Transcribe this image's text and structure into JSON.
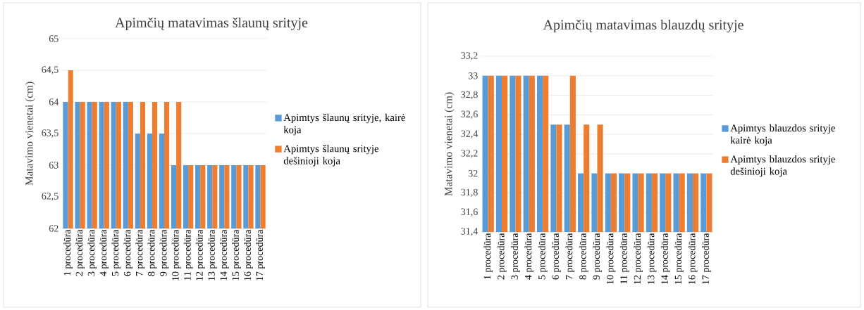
{
  "chart_data": [
    {
      "type": "bar",
      "title": "Apimčių matavimas šlaunų srityje",
      "ylabel": "Matavimo vienetai (cm)",
      "categories": [
        "1 procedūra",
        "2 procedūra",
        "3 procedūra",
        "4 procedūra",
        "5 procedūra",
        "6 procedūra",
        "7 procedūra",
        "8 procedūra",
        "9 procedūra",
        "10 procedūra",
        "11 procedūra",
        "12 procedūra",
        "13 procedūra",
        "14 procedūra",
        "15 procedūra",
        "16 procedūra",
        "17 procedūra"
      ],
      "series": [
        {
          "name": "Apimtys šlaunų srityje, kairė koja",
          "color": "#5b9bd5",
          "values": [
            64,
            64,
            64,
            64,
            64,
            64,
            63.5,
            63.5,
            63.5,
            63,
            63,
            63,
            63,
            63,
            63,
            63,
            63
          ]
        },
        {
          "name": "Apimtys šlaunų srityje dešinioji koja",
          "color": "#ed7d31",
          "values": [
            64.5,
            64,
            64,
            64,
            64,
            64,
            64,
            64,
            64,
            64,
            63,
            63,
            63,
            63,
            63,
            63,
            63
          ]
        }
      ],
      "ylim": [
        62,
        65
      ],
      "yticks": [
        62,
        {
          "value": 62.5,
          "label": "62,5"
        },
        63,
        {
          "value": 63.5,
          "label": "63,5"
        },
        64,
        {
          "value": 64.5,
          "label": "64,5"
        },
        65
      ],
      "grid": "y",
      "legend": "right"
    },
    {
      "type": "bar",
      "title": "Apimčių matavimas blauzdų srityje",
      "ylabel": "Matavimo vienetai (cm)",
      "categories": [
        "1 procedūra",
        "2 procedūra",
        "3 procedūra",
        "4 procedūra",
        "5 procedūra",
        "6 procedūra",
        "7 procedūra",
        "8 procedūra",
        "9 procedūra",
        "10 procedūra",
        "11 procedūra",
        "12 procedūra",
        "13 procedūra",
        "14 procedūra",
        "15 procedūra",
        "16 procedūra",
        "17 procedūra"
      ],
      "series": [
        {
          "name": "Apimtys blauzdos srityje kairė koja",
          "color": "#5b9bd5",
          "values": [
            33,
            33,
            33,
            33,
            33,
            32.5,
            32.5,
            32,
            32,
            32,
            32,
            32,
            32,
            32,
            32,
            32,
            32
          ]
        },
        {
          "name": "Apimtys blauzdos srityje dešinioji koja",
          "color": "#ed7d31",
          "values": [
            33,
            33,
            33,
            33,
            33,
            32.5,
            33,
            32.5,
            32.5,
            32,
            32,
            32,
            32,
            32,
            32,
            32,
            32
          ]
        }
      ],
      "ylim": [
        31.4,
        33.2
      ],
      "yticks": [
        {
          "value": 31.4,
          "label": "31,4"
        },
        {
          "value": 31.6,
          "label": "31,6"
        },
        {
          "value": 31.8,
          "label": "31,8"
        },
        32,
        {
          "value": 32.2,
          "label": "32,2"
        },
        {
          "value": 32.4,
          "label": "32,4"
        },
        {
          "value": 32.6,
          "label": "32,6"
        },
        {
          "value": 32.8,
          "label": "32,8"
        },
        33,
        {
          "value": 33.2,
          "label": "33,2"
        }
      ],
      "grid": "y",
      "legend": "right"
    }
  ]
}
